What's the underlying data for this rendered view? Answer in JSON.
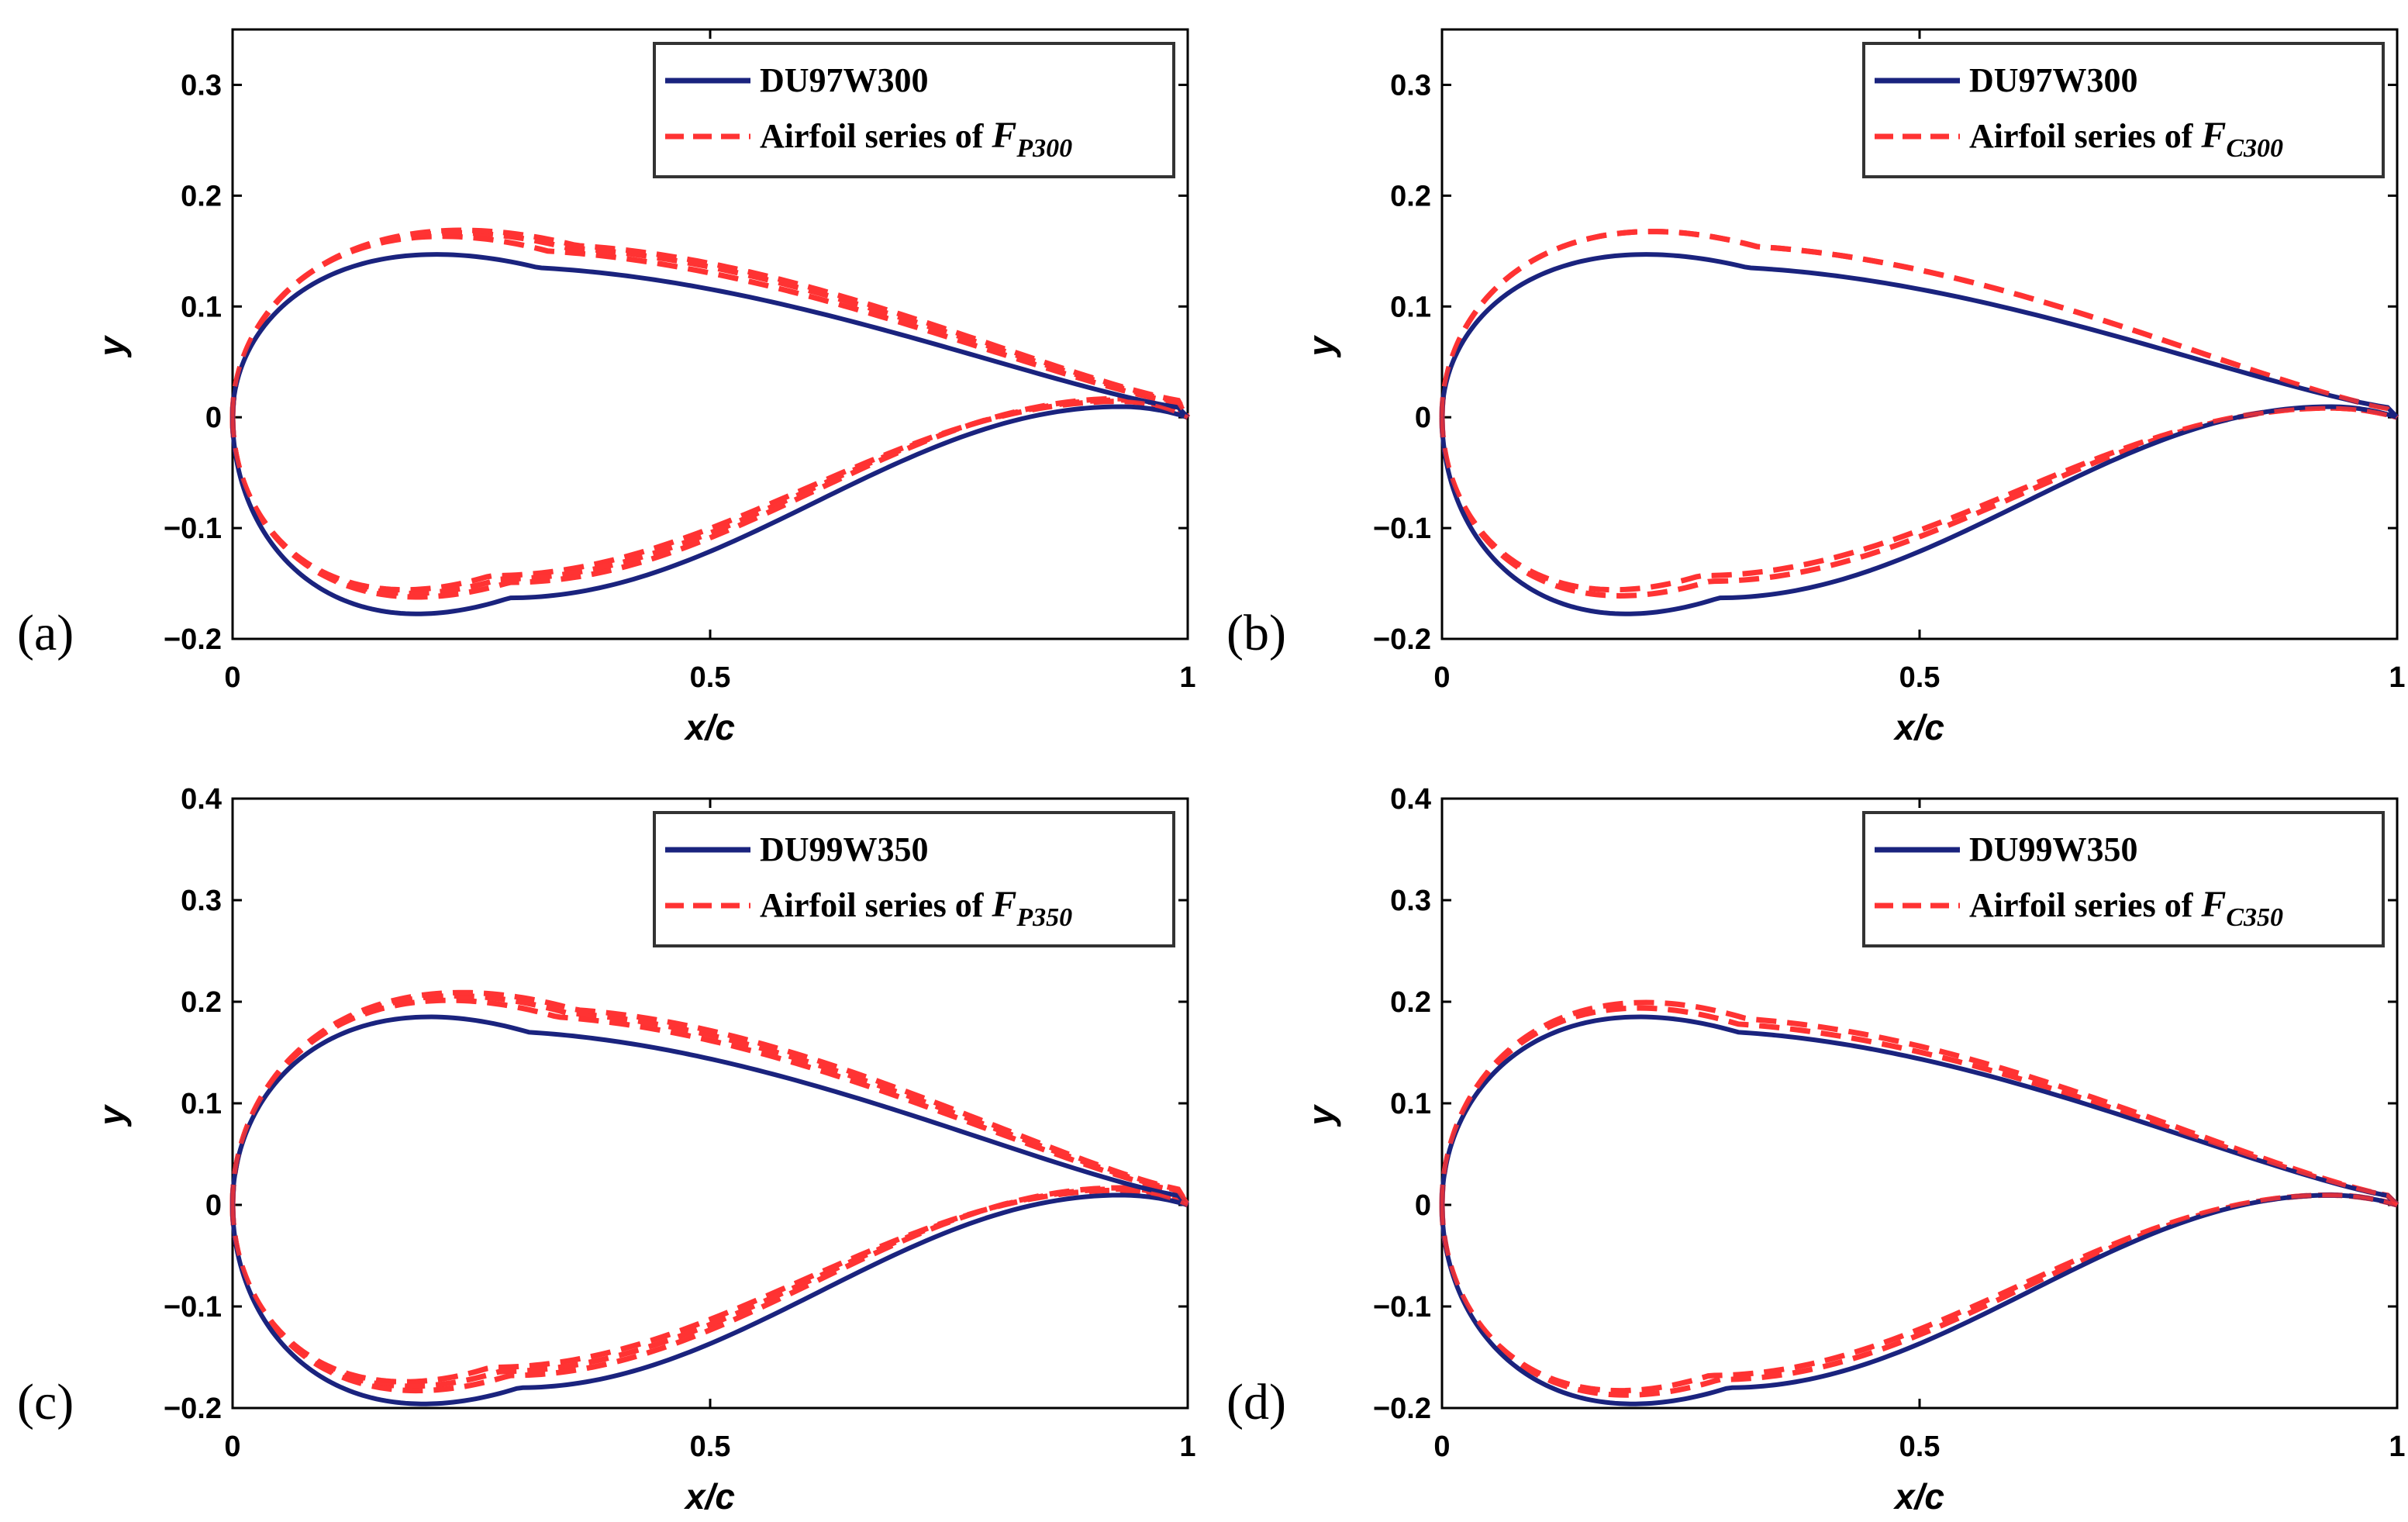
{
  "chart_data": [
    {
      "type": "line",
      "panel_label": "(a)",
      "xlabel": "x/c",
      "ylabel": "y",
      "xlim": [
        0,
        1
      ],
      "ylim": [
        -0.2,
        0.35
      ],
      "xticks": [
        "0",
        "0.5",
        "1"
      ],
      "yticks": [
        "−0.2",
        "−0.1",
        "0",
        "0.1",
        "0.2",
        "0.3"
      ],
      "ytick_values": [
        -0.2,
        -0.1,
        0,
        0.1,
        0.2,
        0.3
      ],
      "legend": {
        "position": "top-right",
        "baseline": "DU97W300",
        "series_prefix": "Airfoil series of ",
        "series_symbol": "F",
        "series_subscript": "P300"
      },
      "series": [
        {
          "name": "DU97W300",
          "style": "solid",
          "color": "#1a237e",
          "upper_max": 0.135,
          "upper_pos": 0.32,
          "lower_min": -0.163,
          "lower_pos": 0.29,
          "te_y": 0.008
        },
        {
          "name": "Airfoil series of F_P300",
          "style": "dashed",
          "color": "#ff3333",
          "variants": [
            {
              "upper_max": 0.15,
              "upper_pos": 0.33,
              "lower_min": -0.143,
              "lower_pos": 0.27,
              "te_y": 0.012
            },
            {
              "upper_max": 0.153,
              "upper_pos": 0.35,
              "lower_min": -0.146,
              "lower_pos": 0.28,
              "te_y": 0.013
            },
            {
              "upper_max": 0.155,
              "upper_pos": 0.36,
              "lower_min": -0.149,
              "lower_pos": 0.29,
              "te_y": 0.014
            }
          ]
        }
      ]
    },
    {
      "type": "line",
      "panel_label": "(b)",
      "xlabel": "x/c",
      "ylabel": "y",
      "xlim": [
        0,
        1
      ],
      "ylim": [
        -0.2,
        0.35
      ],
      "xticks": [
        "0",
        "0.5",
        "1"
      ],
      "yticks": [
        "−0.2",
        "−0.1",
        "0",
        "0.1",
        "0.2",
        "0.3"
      ],
      "ytick_values": [
        -0.2,
        -0.1,
        0,
        0.1,
        0.2,
        0.3
      ],
      "legend": {
        "position": "top-right",
        "baseline": "DU97W300",
        "series_prefix": "Airfoil series of ",
        "series_symbol": "F",
        "series_subscript": "C300"
      },
      "series": [
        {
          "name": "DU97W300",
          "style": "solid",
          "color": "#1a237e",
          "upper_max": 0.135,
          "upper_pos": 0.32,
          "lower_min": -0.163,
          "lower_pos": 0.29,
          "te_y": 0.008
        },
        {
          "name": "Airfoil series of F_C300",
          "style": "dashed",
          "color": "#ff3333",
          "variants": [
            {
              "upper_max": 0.154,
              "upper_pos": 0.33,
              "lower_min": -0.143,
              "lower_pos": 0.27,
              "te_y": 0.007
            },
            {
              "upper_max": 0.154,
              "upper_pos": 0.33,
              "lower_min": -0.148,
              "lower_pos": 0.28,
              "te_y": 0.007
            }
          ]
        }
      ]
    },
    {
      "type": "line",
      "panel_label": "(c)",
      "xlabel": "x/c",
      "ylabel": "y",
      "xlim": [
        0,
        1
      ],
      "ylim": [
        -0.2,
        0.4
      ],
      "xticks": [
        "0",
        "0.5",
        "1"
      ],
      "yticks": [
        "−0.2",
        "−0.1",
        "0",
        "0.1",
        "0.2",
        "0.3",
        "0.4"
      ],
      "ytick_values": [
        -0.2,
        -0.1,
        0,
        0.1,
        0.2,
        0.3,
        0.4
      ],
      "legend": {
        "position": "top-right",
        "baseline": "DU99W350",
        "series_prefix": "Airfoil series of ",
        "series_symbol": "F",
        "series_subscript": "P350"
      },
      "series": [
        {
          "name": "DU99W350",
          "style": "solid",
          "color": "#1a237e",
          "upper_max": 0.17,
          "upper_pos": 0.31,
          "lower_min": -0.18,
          "lower_pos": 0.3,
          "te_y": 0.008
        },
        {
          "name": "Airfoil series of F_P350",
          "style": "dashed",
          "color": "#ff3333",
          "variants": [
            {
              "upper_max": 0.185,
              "upper_pos": 0.34,
              "lower_min": -0.16,
              "lower_pos": 0.27,
              "te_y": 0.012
            },
            {
              "upper_max": 0.189,
              "upper_pos": 0.35,
              "lower_min": -0.164,
              "lower_pos": 0.28,
              "te_y": 0.013
            },
            {
              "upper_max": 0.192,
              "upper_pos": 0.36,
              "lower_min": -0.168,
              "lower_pos": 0.29,
              "te_y": 0.014
            }
          ]
        }
      ]
    },
    {
      "type": "line",
      "panel_label": "(d)",
      "xlabel": "x/c",
      "ylabel": "y",
      "xlim": [
        0,
        1
      ],
      "ylim": [
        -0.2,
        0.4
      ],
      "xticks": [
        "0",
        "0.5",
        "1"
      ],
      "yticks": [
        "−0.2",
        "−0.1",
        "0",
        "0.1",
        "0.2",
        "0.3",
        "0.4"
      ],
      "ytick_values": [
        -0.2,
        -0.1,
        0,
        0.1,
        0.2,
        0.3,
        0.4
      ],
      "legend": {
        "position": "top-right",
        "baseline": "DU99W350",
        "series_prefix": "Airfoil series of ",
        "series_symbol": "F",
        "series_subscript": "C350"
      },
      "series": [
        {
          "name": "DU99W350",
          "style": "solid",
          "color": "#1a237e",
          "upper_max": 0.17,
          "upper_pos": 0.31,
          "lower_min": -0.18,
          "lower_pos": 0.3,
          "te_y": 0.008
        },
        {
          "name": "Airfoil series of F_C350",
          "style": "dashed",
          "color": "#ff3333",
          "variants": [
            {
              "upper_max": 0.178,
              "upper_pos": 0.31,
              "lower_min": -0.168,
              "lower_pos": 0.28,
              "te_y": 0.008
            },
            {
              "upper_max": 0.183,
              "upper_pos": 0.32,
              "lower_min": -0.172,
              "lower_pos": 0.29,
              "te_y": 0.008
            }
          ]
        }
      ]
    }
  ]
}
